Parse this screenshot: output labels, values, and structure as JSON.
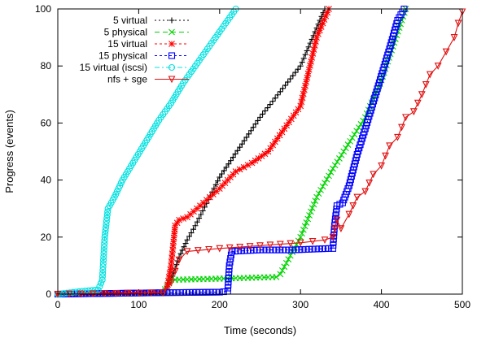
{
  "chart_data": {
    "type": "line",
    "title": "",
    "xlabel": "Time (seconds)",
    "ylabel": "Progress (events)",
    "xlim": [
      0,
      500
    ],
    "ylim": [
      0,
      100
    ],
    "xticks": [
      0,
      100,
      200,
      300,
      400,
      500
    ],
    "yticks": [
      0,
      20,
      40,
      60,
      80,
      100
    ],
    "grid": false,
    "legend_position": "top-left",
    "series": [
      {
        "name": "5 virtual",
        "color": "#000000",
        "dash": "2,3",
        "marker": "plus",
        "marker_every": 3,
        "points": [
          [
            0,
            0
          ],
          [
            50,
            0.3
          ],
          [
            130,
            0.6
          ],
          [
            140,
            5
          ],
          [
            150,
            13
          ],
          [
            160,
            19
          ],
          [
            170,
            24
          ],
          [
            200,
            41
          ],
          [
            250,
            62
          ],
          [
            300,
            80
          ],
          [
            330,
            100
          ]
        ]
      },
      {
        "name": "5 physical",
        "color": "#00d400",
        "dash": "6,4",
        "marker": "x",
        "marker_every": 3,
        "points": [
          [
            0,
            0
          ],
          [
            130,
            0.6
          ],
          [
            140,
            5
          ],
          [
            210,
            5.5
          ],
          [
            270,
            6
          ],
          [
            275,
            7
          ],
          [
            300,
            20
          ],
          [
            320,
            34
          ],
          [
            340,
            44
          ],
          [
            380,
            62
          ],
          [
            400,
            75
          ],
          [
            430,
            100
          ]
        ]
      },
      {
        "name": "15 virtual",
        "color": "#ff0000",
        "dash": "3,3",
        "marker": "star",
        "marker_every": 3,
        "points": [
          [
            0,
            0
          ],
          [
            130,
            0.5
          ],
          [
            135,
            2
          ],
          [
            140,
            10
          ],
          [
            145,
            24
          ],
          [
            150,
            26
          ],
          [
            160,
            27
          ],
          [
            180,
            32
          ],
          [
            200,
            37
          ],
          [
            220,
            43
          ],
          [
            240,
            46
          ],
          [
            260,
            50
          ],
          [
            280,
            58
          ],
          [
            300,
            66
          ],
          [
            320,
            90
          ],
          [
            335,
            100
          ]
        ]
      },
      {
        "name": "15 physical",
        "color": "#0000ff",
        "dash": "3,3",
        "marker": "square",
        "marker_every": 2,
        "points": [
          [
            0,
            0
          ],
          [
            130,
            0.5
          ],
          [
            200,
            0.7
          ],
          [
            210,
            1
          ],
          [
            212,
            10
          ],
          [
            215,
            15
          ],
          [
            250,
            15.5
          ],
          [
            290,
            15.5
          ],
          [
            335,
            16
          ],
          [
            340,
            16
          ],
          [
            342,
            24
          ],
          [
            345,
            31
          ],
          [
            352,
            32
          ],
          [
            360,
            38
          ],
          [
            370,
            49
          ],
          [
            380,
            58
          ],
          [
            395,
            72
          ],
          [
            410,
            86
          ],
          [
            420,
            96
          ],
          [
            428,
            100
          ]
        ]
      },
      {
        "name": "15 virtual (iscsi)",
        "color": "#00e0e0",
        "dash": "6,3,2,3",
        "marker": "circle",
        "marker_every": 2,
        "points": [
          [
            0,
            0
          ],
          [
            30,
            1
          ],
          [
            50,
            1.5
          ],
          [
            55,
            5
          ],
          [
            58,
            20
          ],
          [
            62,
            30
          ],
          [
            70,
            34
          ],
          [
            80,
            40
          ],
          [
            95,
            47
          ],
          [
            110,
            54
          ],
          [
            125,
            61
          ],
          [
            140,
            67
          ],
          [
            155,
            74
          ],
          [
            170,
            80
          ],
          [
            185,
            86
          ],
          [
            200,
            92
          ],
          [
            215,
            98
          ],
          [
            220,
            100
          ]
        ]
      },
      {
        "name": "nfs + sge",
        "color": "#e01010",
        "dash": "",
        "marker": "triangle-down",
        "marker_every": 1,
        "points": [
          [
            0,
            0
          ],
          [
            130,
            0.5
          ],
          [
            140,
            4
          ],
          [
            150,
            12
          ],
          [
            160,
            15
          ],
          [
            200,
            16
          ],
          [
            250,
            17
          ],
          [
            300,
            18
          ],
          [
            330,
            19
          ],
          [
            340,
            20
          ],
          [
            345,
            26
          ],
          [
            350,
            23
          ],
          [
            360,
            28
          ],
          [
            370,
            34
          ],
          [
            380,
            36
          ],
          [
            390,
            42
          ],
          [
            400,
            45
          ],
          [
            410,
            52
          ],
          [
            420,
            55
          ],
          [
            430,
            62
          ],
          [
            440,
            64
          ],
          [
            450,
            70
          ],
          [
            460,
            77
          ],
          [
            470,
            80
          ],
          [
            480,
            85
          ],
          [
            490,
            90
          ],
          [
            495,
            95
          ],
          [
            500,
            99
          ]
        ]
      }
    ]
  }
}
